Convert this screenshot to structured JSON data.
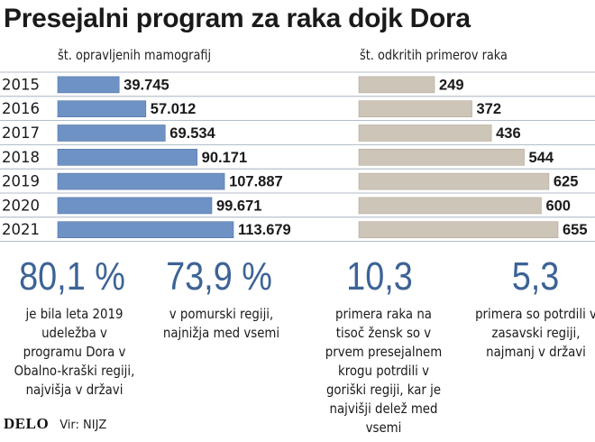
{
  "title": "Presejalni program za raka dojk Dora",
  "colors": {
    "bar_left": "#6f92c4",
    "bar_left_edge": "#4f74a8",
    "bar_right": "#cdc5b8",
    "bar_right_edge": "#b3a999",
    "accent": "#3d6396",
    "grid": "#9aa8b8"
  },
  "chart_data": [
    {
      "type": "bar",
      "orientation": "horizontal",
      "title": "št. opravljenih mamografij",
      "categories": [
        "2015",
        "2016",
        "2017",
        "2018",
        "2019",
        "2020",
        "2021"
      ],
      "values": [
        39745,
        57012,
        69534,
        90171,
        107887,
        99671,
        113679
      ],
      "value_labels": [
        "39.745",
        "57.012",
        "69.534",
        "90.171",
        "107.887",
        "99.671",
        "113.679"
      ]
    },
    {
      "type": "bar",
      "orientation": "horizontal",
      "title": "št. odkritih primerov raka",
      "categories": [
        "2015",
        "2016",
        "2017",
        "2018",
        "2019",
        "2020",
        "2021"
      ],
      "values": [
        249,
        372,
        436,
        544,
        625,
        600,
        655
      ],
      "value_labels": [
        "249",
        "372",
        "436",
        "544",
        "625",
        "600",
        "655"
      ]
    }
  ],
  "stats": [
    {
      "value": "80,1 %",
      "desc": "je bila leta 2019 udeležba v programu Dora v Obalno-kraški regiji, najvišja v državi"
    },
    {
      "value": "73,9 %",
      "desc": "v pomurski regiji, najnižja med vsemi"
    },
    {
      "value": "10,3",
      "desc": "primera raka na tisoč žensk so v prvem presejalnem krogu potrdili v goriški regiji, kar je najvišji delež med vsemi"
    },
    {
      "value": "5,3",
      "desc": "primera so potrdili v zasavski regiji, najmanj v državi"
    }
  ],
  "footer": {
    "logo": "DELO",
    "source": "Vir: NIJZ"
  }
}
